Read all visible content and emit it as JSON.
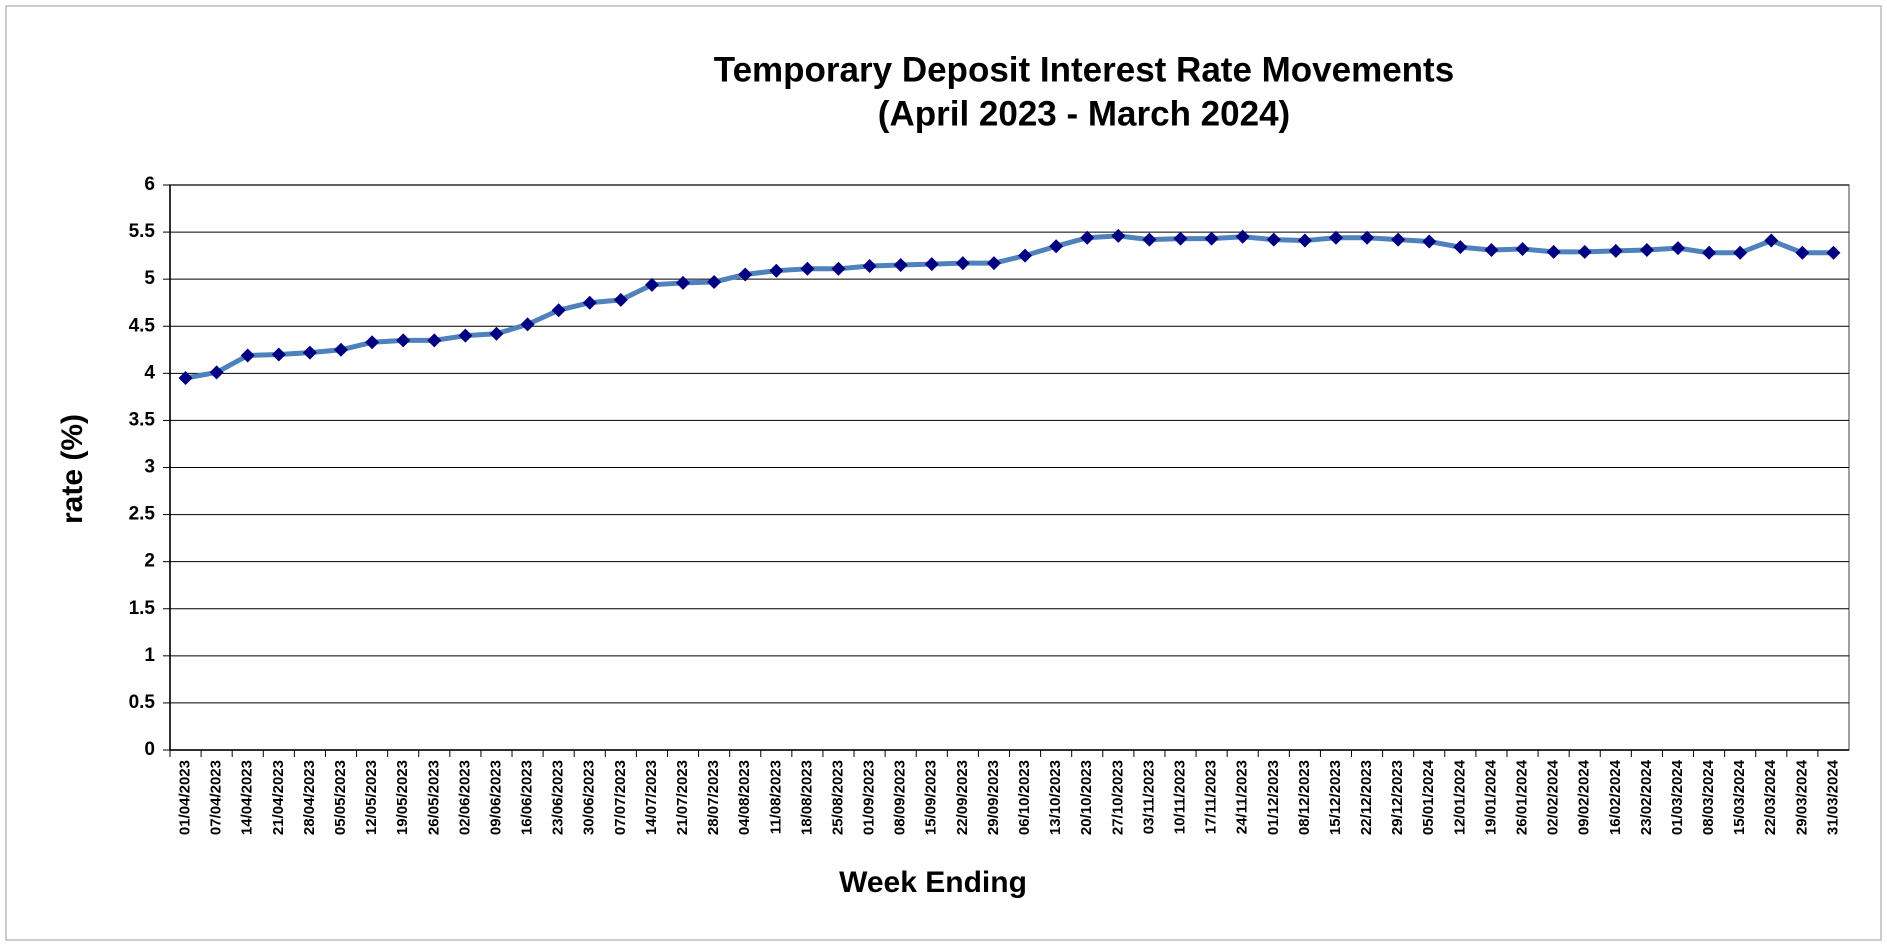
{
  "chart_data": {
    "type": "line",
    "title": "Temporary Deposit Interest Rate Movements",
    "subtitle": "(April 2023 - March 2024)",
    "x_label": "Week Ending",
    "y_label": "rate (%)",
    "categories": [
      "01/04/2023",
      "07/04/2023",
      "14/04/2023",
      "21/04/2023",
      "28/04/2023",
      "05/05/2023",
      "12/05/2023",
      "19/05/2023",
      "26/05/2023",
      "02/06/2023",
      "09/06/2023",
      "16/06/2023",
      "23/06/2023",
      "30/06/2023",
      "07/07/2023",
      "14/07/2023",
      "21/07/2023",
      "28/07/2023",
      "04/08/2023",
      "11/08/2023",
      "18/08/2023",
      "25/08/2023",
      "01/09/2023",
      "08/09/2023",
      "15/09/2023",
      "22/09/2023",
      "29/09/2023",
      "06/10/2023",
      "13/10/2023",
      "20/10/2023",
      "27/10/2023",
      "03/11/2023",
      "10/11/2023",
      "17/11/2023",
      "24/11/2023",
      "01/12/2023",
      "08/12/2023",
      "15/12/2023",
      "22/12/2023",
      "29/12/2023",
      "05/01/2024",
      "12/01/2024",
      "19/01/2024",
      "26/01/2024",
      "02/02/2024",
      "09/02/2024",
      "16/02/2024",
      "23/02/2024",
      "01/03/2024",
      "08/03/2024",
      "15/03/2024",
      "22/03/2024",
      "29/03/2024",
      "31/03/2024"
    ],
    "values": [
      3.95,
      4.01,
      4.19,
      4.2,
      4.22,
      4.25,
      4.33,
      4.35,
      4.35,
      4.4,
      4.42,
      4.52,
      4.67,
      4.75,
      4.78,
      4.94,
      4.96,
      4.97,
      5.05,
      5.09,
      5.11,
      5.11,
      5.14,
      5.15,
      5.16,
      5.17,
      5.17,
      5.25,
      5.35,
      5.44,
      5.46,
      5.42,
      5.43,
      5.43,
      5.45,
      5.42,
      5.41,
      5.44,
      5.44,
      5.42,
      5.4,
      5.34,
      5.31,
      5.32,
      5.29,
      5.29,
      5.3,
      5.31,
      5.33,
      5.28,
      5.28,
      5.41,
      5.28,
      5.28
    ],
    "color": "#4f81bd",
    "marker_color": "#000080",
    "ylim": [
      0,
      6
    ],
    "yticks": [
      0,
      0.5,
      1,
      1.5,
      2,
      2.5,
      3,
      3.5,
      4,
      4.5,
      5,
      5.5,
      6
    ],
    "grid": true
  }
}
